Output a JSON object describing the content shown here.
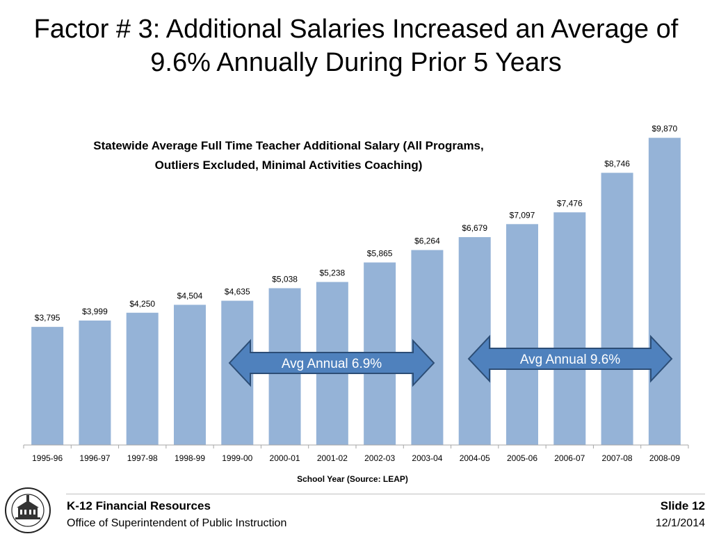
{
  "slide": {
    "title_line1": "Factor # 3: Additional Salaries Increased an Average of",
    "title_line2": "9.6% Annually During Prior 5 Years"
  },
  "chart_data": {
    "type": "bar",
    "title": "Statewide Average Full Time Teacher Additional Salary (All Programs, Outliers Excluded, Minimal Activities Coaching)",
    "title_line1": "Statewide Average Full Time Teacher Additional Salary (All Programs,",
    "title_line2": "Outliers Excluded, Minimal Activities Coaching)",
    "xlabel": "School Year (Source: LEAP)",
    "ylabel": "",
    "categories": [
      "1995-96",
      "1996-97",
      "1997-98",
      "1998-99",
      "1999-00",
      "2000-01",
      "2001-02",
      "2002-03",
      "2003-04",
      "2004-05",
      "2005-06",
      "2006-07",
      "2007-08",
      "2008-09"
    ],
    "values": [
      3795,
      3999,
      4250,
      4504,
      4635,
      5038,
      5238,
      5865,
      6264,
      6679,
      7097,
      7476,
      8746,
      9870
    ],
    "data_labels": [
      "$3,795",
      "$3,999",
      "$4,250",
      "$4,504",
      "$4,635",
      "$5,038",
      "$5,238",
      "$5,865",
      "$6,264",
      "$6,679",
      "$7,097",
      "$7,476",
      "$8,746",
      "$9,870"
    ],
    "ylim": [
      0,
      10500
    ],
    "grid": false,
    "bar_color": "#95b3d7",
    "annotations": [
      {
        "text": "Avg Annual 6.9%",
        "from_category": "1999-00",
        "to_category": "2003-04"
      },
      {
        "text": "Avg Annual 9.6%",
        "from_category": "2004-05",
        "to_category": "2008-09"
      }
    ],
    "arrow_color": "#4f81bd"
  },
  "footer": {
    "org": "K-12 Financial Resources",
    "office": "Office of Superintendent of Public Instruction",
    "slide": "Slide 12",
    "date": "12/1/2014",
    "seal_text": "SUPERINTENDENT OF PUBLIC INSTRUCTION · WASHINGTON"
  }
}
